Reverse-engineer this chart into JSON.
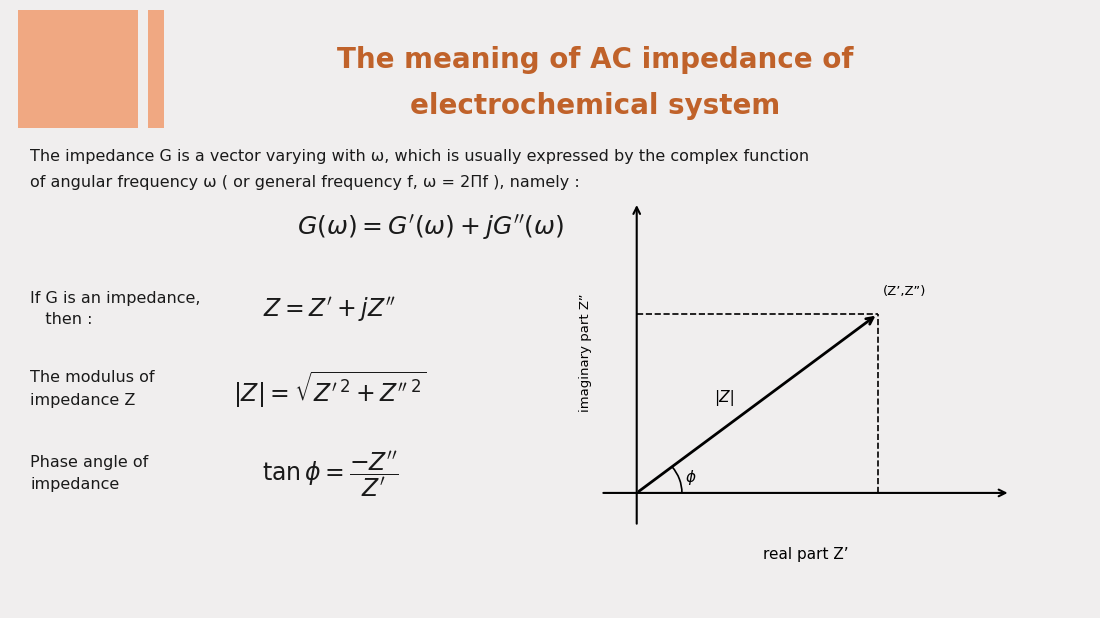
{
  "bg_color": "#f0eeee",
  "title_color": "#c0622a",
  "title_line1": "The meaning of AC impedance of",
  "title_line2": "electrochemical system",
  "orange_rect_color": "#f0a882",
  "body_text1": "The impedance G is a vector varying with ω, which is usually expressed by the complex function",
  "body_text2": "of angular frequency ω ( or general frequency f, ω = 2Πf ), namely :",
  "label_impedance_1": "If G is an impedance,",
  "label_impedance_2": "   then :",
  "label_modulus_1": "The modulus of",
  "label_modulus_2": "impedance Z",
  "label_phase_1": "Phase angle of",
  "label_phase_2": "impedance",
  "diagram_xlabel": "real part Z’",
  "diagram_ylabel": "imaginary part Z”",
  "diagram_point_label": "(Z’,Z”)",
  "diagram_vector_label": "|Z|",
  "diagram_angle_label": "ϕ",
  "text_color": "#1a1a1a"
}
